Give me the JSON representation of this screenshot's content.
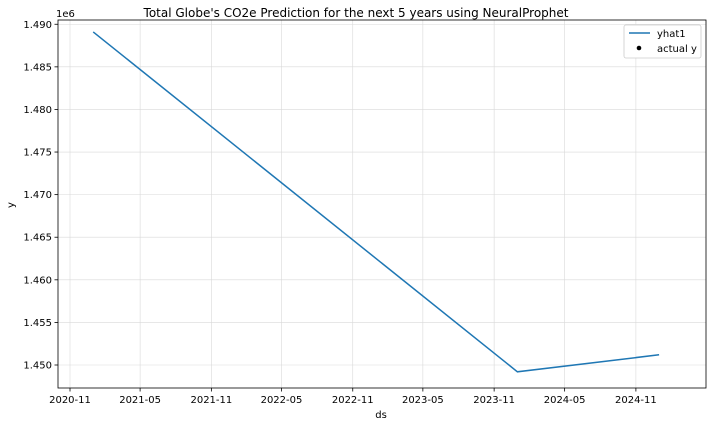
{
  "chart_data": {
    "type": "line",
    "title": "Total Globe's CO2e Prediction for the next 5 years using NeuralProphet",
    "xlabel": "ds",
    "ylabel": "y",
    "y_offset_label": "1e6",
    "xlim": [
      "2020-10-01",
      "2025-05-01"
    ],
    "ylim": [
      1.4473,
      1.4905
    ],
    "x_ticks": [
      "2020-11",
      "2021-05",
      "2021-11",
      "2022-05",
      "2022-11",
      "2023-05",
      "2023-11",
      "2024-05",
      "2024-11"
    ],
    "y_ticks": [
      "1.450",
      "1.455",
      "1.460",
      "1.465",
      "1.470",
      "1.475",
      "1.480",
      "1.485",
      "1.490"
    ],
    "grid": true,
    "legend_position": "top-right",
    "series": [
      {
        "name": "yhat1",
        "color": "#1f77b4",
        "x": [
          "2020-12-31",
          "2023-12-31",
          "2024-12-31"
        ],
        "y": [
          1.4891,
          1.4492,
          1.4512
        ]
      },
      {
        "name": "actual y",
        "color": "#000000",
        "marker": "dot",
        "x": [],
        "y": []
      }
    ]
  }
}
